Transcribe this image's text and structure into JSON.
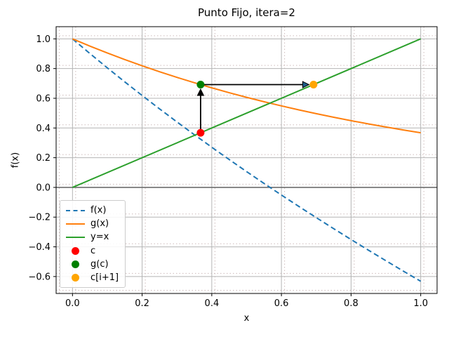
{
  "chart_data": {
    "type": "line",
    "title": "Punto Fijo, itera=2",
    "xlabel": "x",
    "ylabel": "f(x)",
    "xlim": [
      -0.047,
      1.047
    ],
    "ylim": [
      -0.714,
      1.082
    ],
    "grid": true,
    "legend_position": "lower left",
    "xticks": [
      0.0,
      0.2,
      0.4,
      0.6,
      0.8,
      1.0
    ],
    "xtick_labels": [
      "0.0",
      "0.2",
      "0.4",
      "0.6",
      "0.8",
      "1.0"
    ],
    "yticks": [
      1.0,
      0.8,
      0.6,
      0.4,
      0.2,
      0.0,
      -0.2,
      -0.4,
      -0.6
    ],
    "ytick_labels": [
      "1.0",
      "0.8",
      "0.6",
      "0.4",
      "0.2",
      "0.0",
      "−0.2",
      "−0.4",
      "−0.6"
    ],
    "hline_y": 0.0,
    "series": [
      {
        "name": "f(x)",
        "color": "#1f77b4",
        "style": "dashed",
        "width": 2,
        "x": [
          0.0,
          0.05,
          0.1,
          0.15,
          0.2,
          0.25,
          0.3,
          0.35,
          0.4,
          0.45,
          0.5,
          0.55,
          0.6,
          0.65,
          0.7,
          0.75,
          0.8,
          0.85,
          0.9,
          0.95,
          1.0
        ],
        "y": [
          1.0,
          0.9012,
          0.8048,
          0.7107,
          0.6187,
          0.5288,
          0.4408,
          0.3547,
          0.2703,
          0.1876,
          0.1065,
          0.0269,
          -0.0512,
          -0.128,
          -0.2034,
          -0.2776,
          -0.3507,
          -0.4226,
          -0.4934,
          -0.5633,
          -0.6321
        ]
      },
      {
        "name": "g(x)",
        "color": "#ff7f0e",
        "style": "solid",
        "width": 2,
        "x": [
          0.0,
          0.05,
          0.1,
          0.15,
          0.2,
          0.25,
          0.3,
          0.35,
          0.4,
          0.45,
          0.5,
          0.55,
          0.6,
          0.65,
          0.7,
          0.75,
          0.8,
          0.85,
          0.9,
          0.95,
          1.0
        ],
        "y": [
          1.0,
          0.9512,
          0.9048,
          0.8607,
          0.8187,
          0.7788,
          0.7408,
          0.7047,
          0.6703,
          0.6376,
          0.6065,
          0.5769,
          0.5488,
          0.522,
          0.4966,
          0.4724,
          0.4493,
          0.4274,
          0.4066,
          0.3867,
          0.3679
        ]
      },
      {
        "name": "y=x",
        "color": "#2ca02c",
        "style": "solid",
        "width": 2,
        "x": [
          0.0,
          1.0
        ],
        "y": [
          0.0,
          1.0
        ]
      }
    ],
    "points": [
      {
        "name": "c",
        "color": "#ff0000",
        "x": 0.3679,
        "y": 0.3679
      },
      {
        "name": "g(c)",
        "color": "#008000",
        "x": 0.3679,
        "y": 0.6922
      },
      {
        "name": "c[i+1]",
        "color": "#ffa500",
        "x": 0.6922,
        "y": 0.6922
      }
    ],
    "arrows": [
      {
        "from": [
          0.3679,
          0.3679
        ],
        "to": [
          0.3679,
          0.6922
        ],
        "head_fill": "#000000"
      },
      {
        "from": [
          0.3679,
          0.6922
        ],
        "to": [
          0.6922,
          0.6922
        ],
        "head_fill": "#1f5f8b"
      }
    ],
    "legend": {
      "entries": [
        {
          "label": "f(x)",
          "type": "dashed-line",
          "color": "#1f77b4"
        },
        {
          "label": "g(x)",
          "type": "line",
          "color": "#ff7f0e"
        },
        {
          "label": "y=x",
          "type": "line",
          "color": "#2ca02c"
        },
        {
          "label": "c",
          "type": "dot",
          "color": "#ff0000"
        },
        {
          "label": "g(c)",
          "type": "dot",
          "color": "#008000"
        },
        {
          "label": "c[i+1]",
          "type": "dot",
          "color": "#ffa500"
        }
      ]
    },
    "style": {
      "grid_color": "#b4b4b4",
      "dotted_grid_color": "#cdbbbb",
      "zero_line_color": "#6e6e6e",
      "spine_color": "#000000",
      "tick_color": "#000000",
      "background": "#ffffff"
    }
  }
}
